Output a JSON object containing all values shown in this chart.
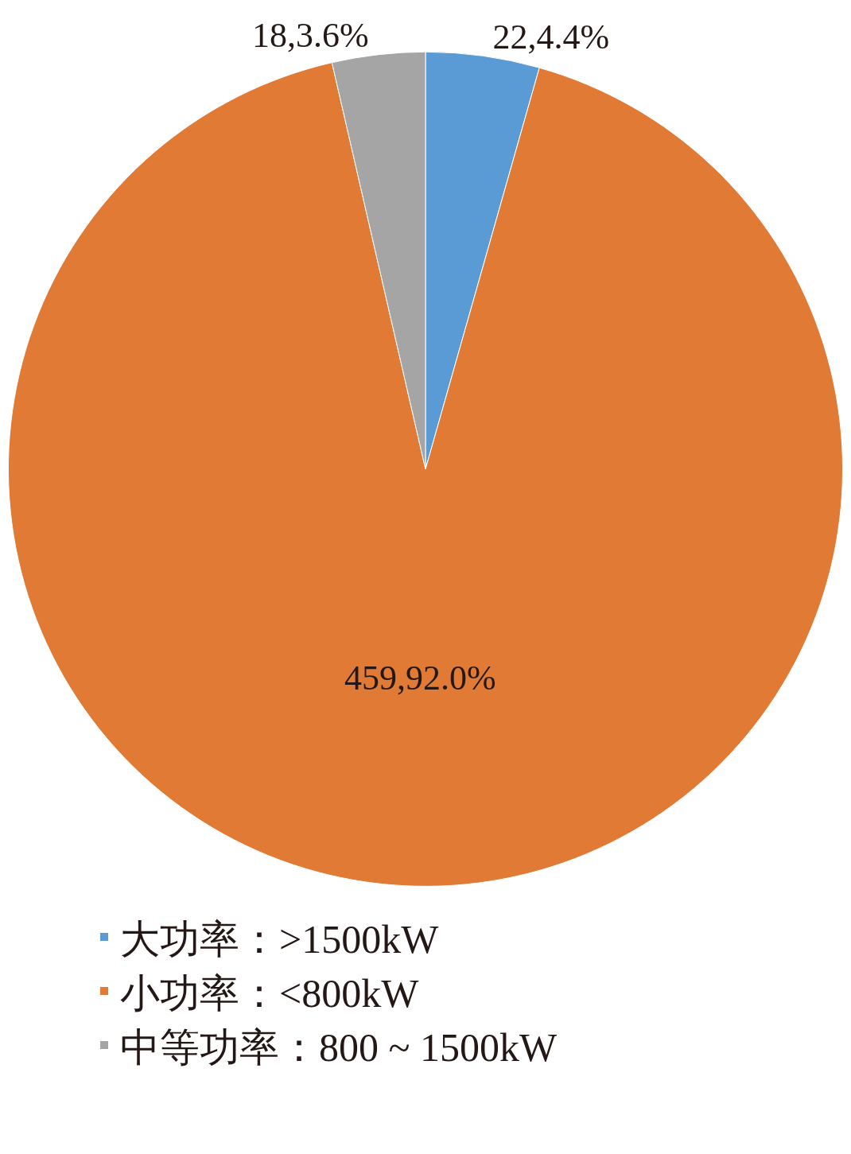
{
  "chart_data": {
    "type": "pie",
    "categories": [
      "大功率：>1500kW",
      "小功率：<800kW",
      "中等功率：800 ~ 1500kW"
    ],
    "values": [
      4.4,
      92.0,
      3.6
    ],
    "colors": [
      "#5b9bd5",
      "#e07a35",
      "#a5a5a5"
    ],
    "value_labels": [
      "22,4.4%",
      "459,92.0%",
      "18,3.6%"
    ],
    "legend": "bottom"
  }
}
